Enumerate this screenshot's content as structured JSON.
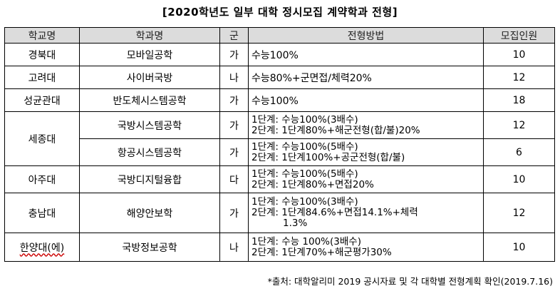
{
  "title": "[2020학년도 일부 대학 정시모집 계약학과 전형]",
  "table": {
    "headers": [
      "학교명",
      "학과명",
      "군",
      "전형방법",
      "모집인원"
    ],
    "rows": [
      {
        "school": "경북대",
        "dept": "모바일공학",
        "group": "가",
        "method": [
          "수능100%"
        ],
        "count": "10"
      },
      {
        "school": "고려대",
        "dept": "사이버국방",
        "group": "나",
        "method": [
          "수능80%+군면접/체력20%"
        ],
        "count": "12"
      },
      {
        "school": "성균관대",
        "dept": "반도체시스템공학",
        "group": "가",
        "method": [
          "수능100%"
        ],
        "count": "18"
      },
      {
        "school": "세종대",
        "dept": "국방시스템공학",
        "group": "가",
        "method": [
          "1단계: 수능100%(3배수)",
          "2단계: 1단계80%+해군전형(합/불)20%"
        ],
        "count": "12"
      },
      {
        "school": "",
        "dept": "항공시스템공학",
        "group": "가",
        "method": [
          "1단계: 수능100%(5배수)",
          "2단계: 1단계100%+공군전형(합/불)"
        ],
        "count": "6"
      },
      {
        "school": "아주대",
        "dept": "국방디지털융합",
        "group": "다",
        "method": [
          "1단계: 수능100%(5배수)",
          "2단계: 1단계80%+면접20%"
        ],
        "count": "10"
      },
      {
        "school": "충남대",
        "dept": "해양안보학",
        "group": "가",
        "method": [
          "1단계: 수능100%(3배수)",
          "2단계: 1단계84.6%+면접14.1%+체력",
          "1.3%"
        ],
        "count": "12"
      },
      {
        "school": "한양대(에)",
        "dept": "국방정보공학",
        "group": "나",
        "method": [
          "1단계: 수능 100%(3배수)",
          "2단계: 1단계70%+해군평가30%"
        ],
        "count": "10"
      }
    ]
  },
  "source": "*출처: 대학알리미 2019 공시자료 및 각 대학별 전형계획 확인(2019.7.16)"
}
